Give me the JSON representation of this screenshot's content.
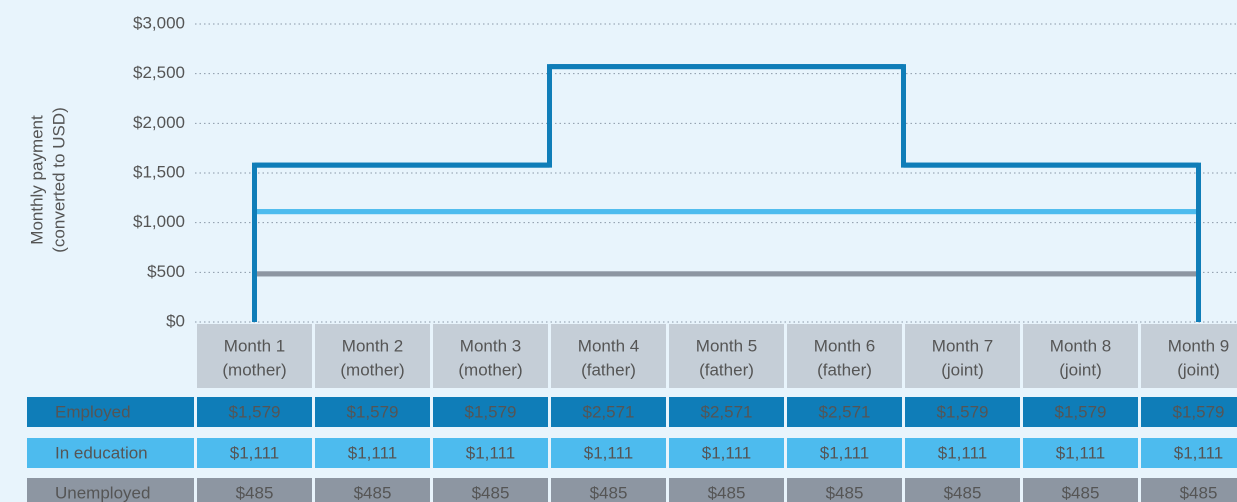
{
  "chart_data": {
    "type": "step",
    "ylabel": [
      "Monthly payment",
      "(converted to USD)"
    ],
    "categories": [
      "Month 1",
      "Month 2",
      "Month 3",
      "Month 4",
      "Month 5",
      "Month 6",
      "Month 7",
      "Month 8",
      "Month 9"
    ],
    "subcategories": [
      "(mother)",
      "(mother)",
      "(mother)",
      "(father)",
      "(father)",
      "(father)",
      "(joint)",
      "(joint)",
      "(joint)"
    ],
    "ylim": [
      0,
      3000
    ],
    "yticks": [
      {
        "value": 0,
        "label": "$0"
      },
      {
        "value": 500,
        "label": "$500"
      },
      {
        "value": 1000,
        "label": "$1,000"
      },
      {
        "value": 1500,
        "label": "$1,500"
      },
      {
        "value": 2000,
        "label": "$2,000"
      },
      {
        "value": 2500,
        "label": "$2,500"
      },
      {
        "value": 3000,
        "label": "$3,000"
      }
    ],
    "grid": true,
    "series": [
      {
        "name": "Employed",
        "color": "#0f7db8",
        "values": [
          1579,
          1579,
          1579,
          2571,
          2571,
          2571,
          1579,
          1579,
          1579
        ],
        "value_labels": [
          "$1,579",
          "$1,579",
          "$1,579",
          "$2,571",
          "$2,571",
          "$2,571",
          "$1,579",
          "$1,579",
          "$1,579"
        ]
      },
      {
        "name": "In education",
        "color": "#4dbbee",
        "values": [
          1111,
          1111,
          1111,
          1111,
          1111,
          1111,
          1111,
          1111,
          1111
        ],
        "value_labels": [
          "$1,111",
          "$1,111",
          "$1,111",
          "$1,111",
          "$1,111",
          "$1,111",
          "$1,111",
          "$1,111",
          "$1,111"
        ]
      },
      {
        "name": "Unemployed",
        "color": "#8d96a2",
        "values": [
          485,
          485,
          485,
          485,
          485,
          485,
          485,
          485,
          485
        ],
        "value_labels": [
          "$485",
          "$485",
          "$485",
          "$485",
          "$485",
          "$485",
          "$485",
          "$485",
          "$485"
        ]
      }
    ]
  }
}
